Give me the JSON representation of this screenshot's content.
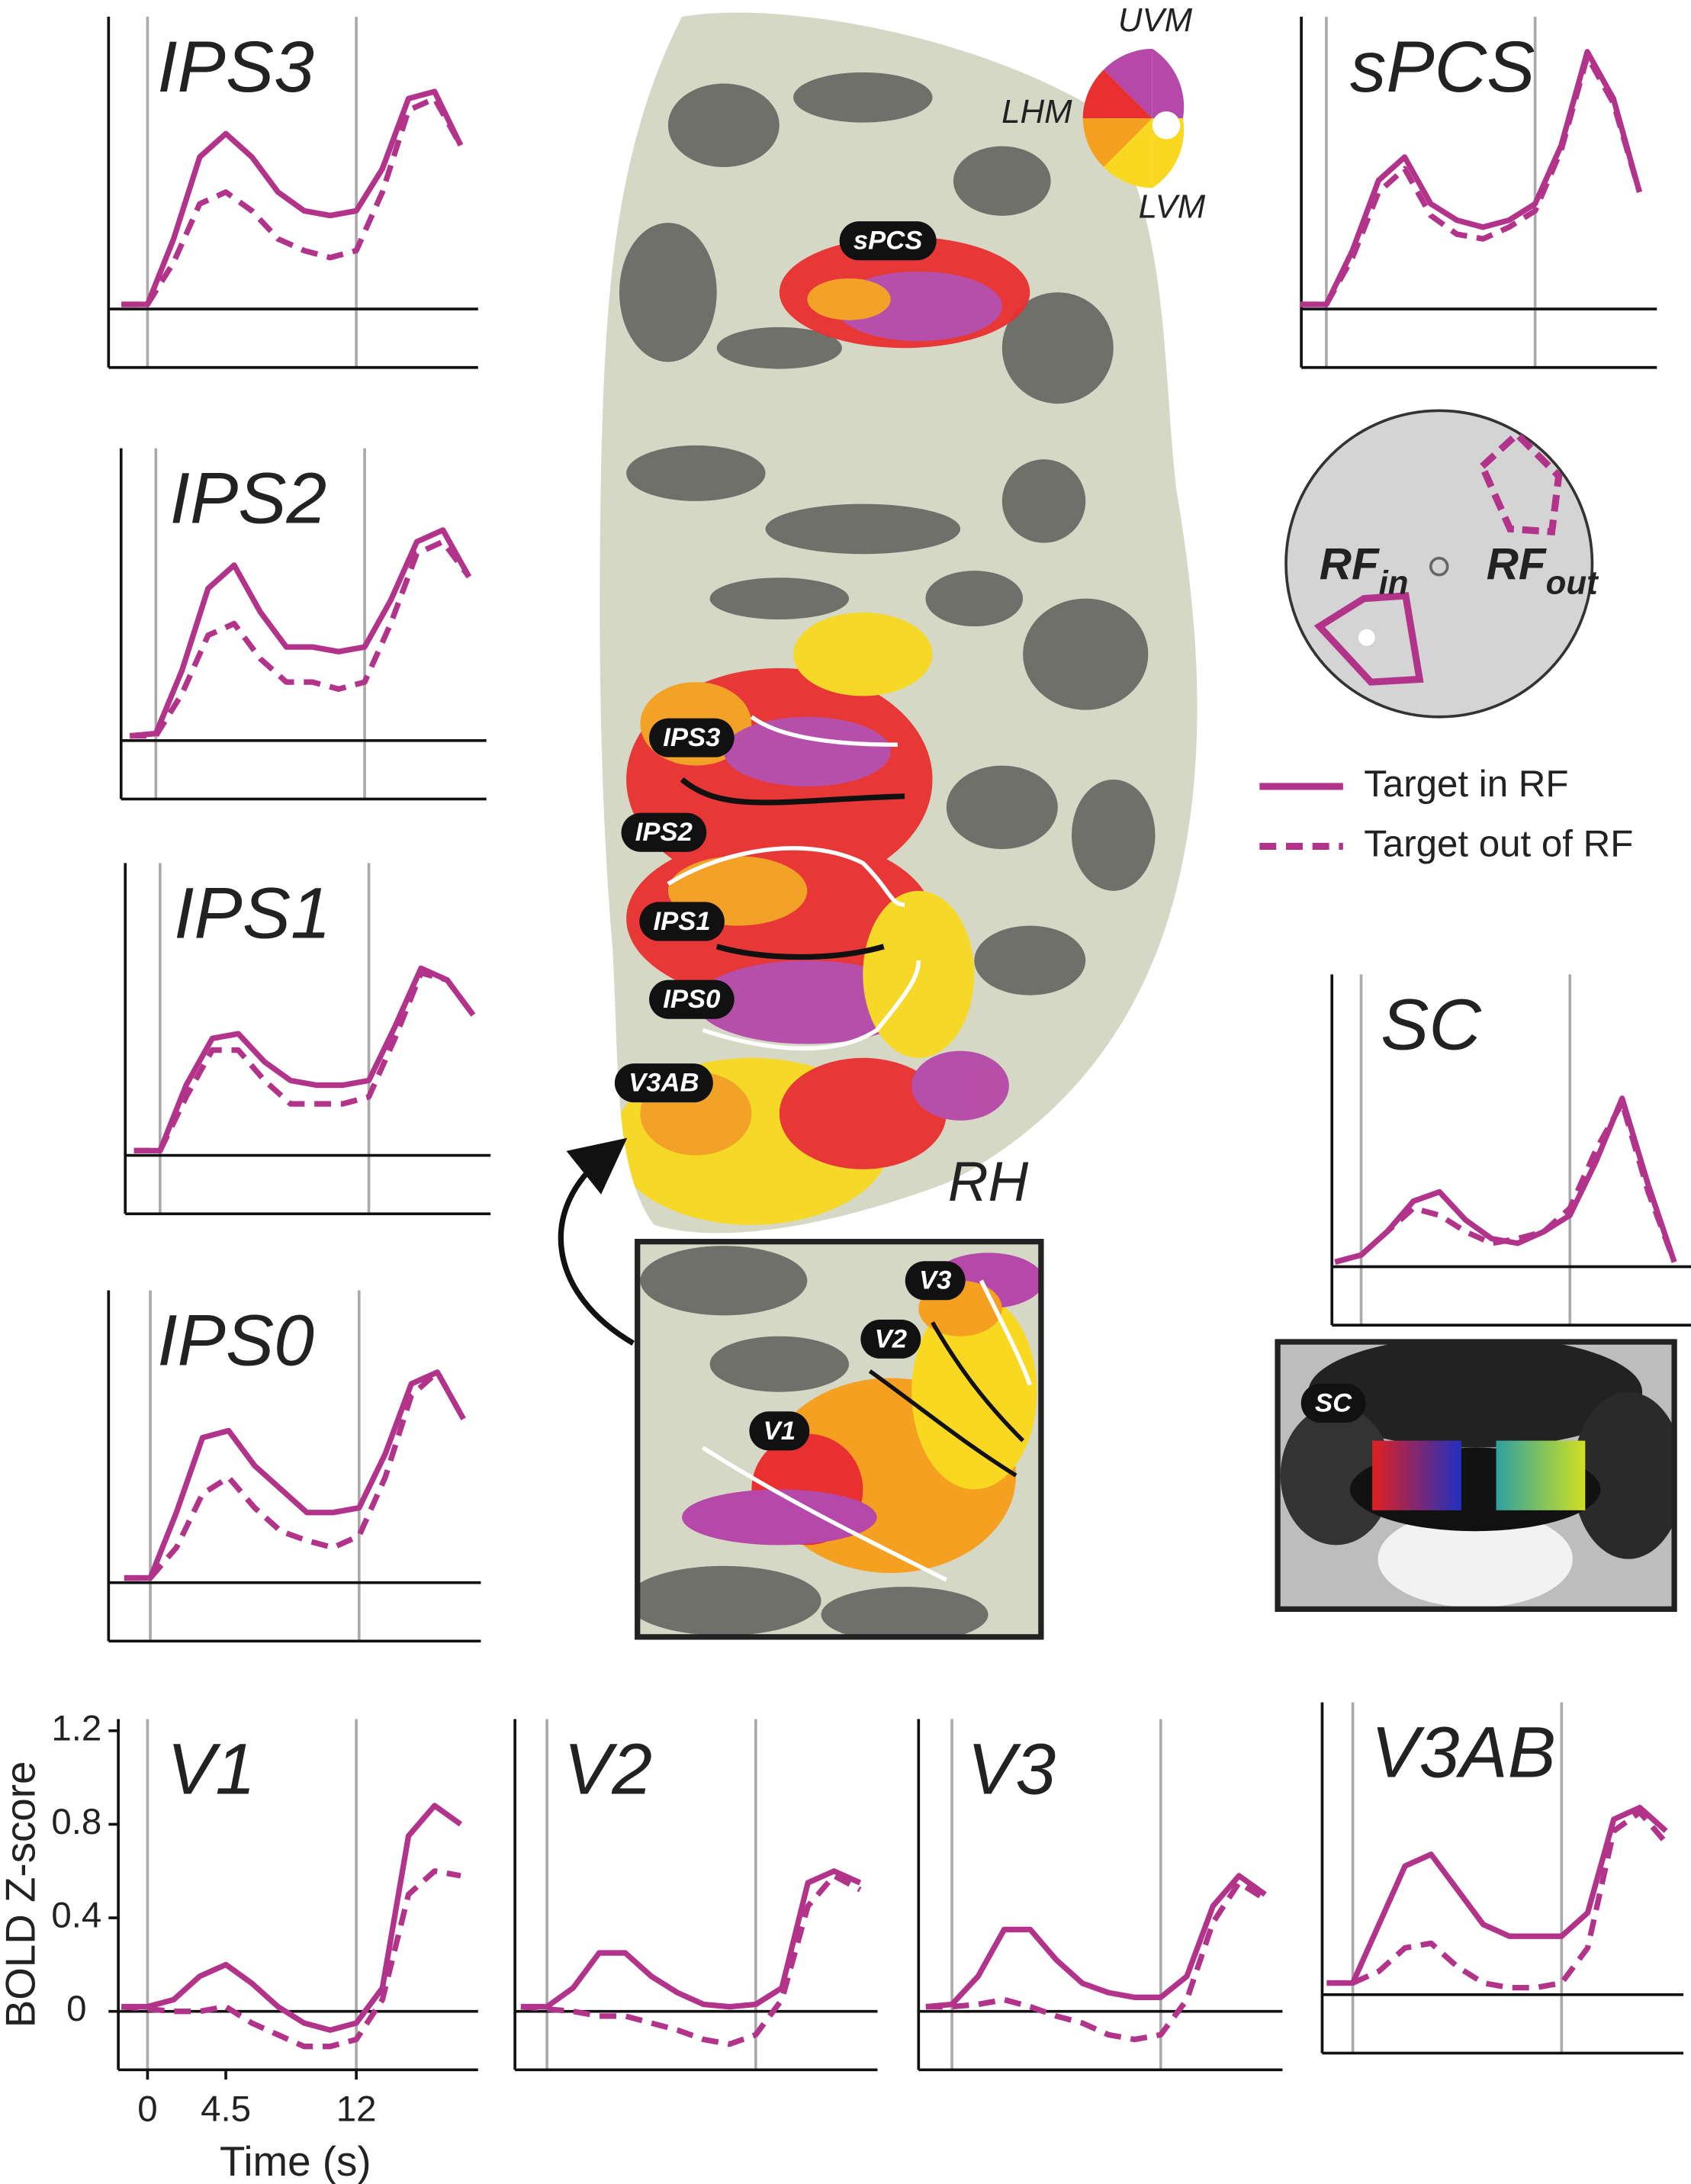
{
  "chart_data": [
    {
      "type": "line",
      "title": "IPS3",
      "x": [
        -1.5,
        0,
        1.5,
        3,
        4.5,
        6,
        7.5,
        9,
        10.5,
        12,
        13.5,
        15,
        16.5,
        18
      ],
      "xlim": [
        -2,
        19
      ],
      "ylim": [
        -0.25,
        1.25
      ],
      "markers": [
        0,
        12
      ],
      "series": [
        {
          "color": "#b2338a",
          "dash": false,
          "values": [
            0.02,
            0.02,
            0.3,
            0.65,
            0.75,
            0.65,
            0.5,
            0.42,
            0.4,
            0.42,
            0.6,
            0.9,
            0.93,
            0.7
          ]
        },
        {
          "color": "#b2338a",
          "dash": true,
          "values": [
            0.02,
            0.02,
            0.2,
            0.45,
            0.5,
            0.42,
            0.3,
            0.25,
            0.22,
            0.25,
            0.5,
            0.85,
            0.9,
            0.7
          ]
        }
      ]
    },
    {
      "type": "line",
      "title": "IPS2",
      "x": [
        -1.5,
        0,
        1.5,
        3,
        4.5,
        6,
        7.5,
        9,
        10.5,
        12,
        13.5,
        15,
        16.5,
        18
      ],
      "xlim": [
        -2,
        19
      ],
      "ylim": [
        -0.25,
        1.25
      ],
      "markers": [
        0,
        12
      ],
      "series": [
        {
          "color": "#b2338a",
          "dash": false,
          "values": [
            0.02,
            0.03,
            0.3,
            0.65,
            0.75,
            0.55,
            0.4,
            0.4,
            0.38,
            0.4,
            0.6,
            0.85,
            0.9,
            0.7
          ]
        },
        {
          "color": "#b2338a",
          "dash": true,
          "values": [
            0.02,
            0.02,
            0.2,
            0.45,
            0.5,
            0.35,
            0.25,
            0.25,
            0.22,
            0.25,
            0.5,
            0.8,
            0.85,
            0.7
          ]
        }
      ]
    },
    {
      "type": "line",
      "title": "IPS1",
      "x": [
        -1.5,
        0,
        1.5,
        3,
        4.5,
        6,
        7.5,
        9,
        10.5,
        12,
        13.5,
        15,
        16.5,
        18
      ],
      "xlim": [
        -2,
        19
      ],
      "ylim": [
        -0.25,
        1.25
      ],
      "markers": [
        0,
        12
      ],
      "series": [
        {
          "color": "#b2338a",
          "dash": false,
          "values": [
            0.02,
            0.02,
            0.3,
            0.5,
            0.52,
            0.4,
            0.32,
            0.3,
            0.3,
            0.32,
            0.55,
            0.8,
            0.75,
            0.6
          ]
        },
        {
          "color": "#b2338a",
          "dash": true,
          "values": [
            0.02,
            0.02,
            0.25,
            0.45,
            0.45,
            0.32,
            0.22,
            0.22,
            0.22,
            0.25,
            0.5,
            0.78,
            0.75,
            0.6
          ]
        }
      ]
    },
    {
      "type": "line",
      "title": "IPS0",
      "x": [
        -1.5,
        0,
        1.5,
        3,
        4.5,
        6,
        7.5,
        9,
        10.5,
        12,
        13.5,
        15,
        16.5,
        18
      ],
      "xlim": [
        -2,
        19
      ],
      "ylim": [
        -0.25,
        1.25
      ],
      "markers": [
        0,
        12
      ],
      "series": [
        {
          "color": "#b2338a",
          "dash": false,
          "values": [
            0.02,
            0.02,
            0.3,
            0.62,
            0.65,
            0.5,
            0.4,
            0.3,
            0.3,
            0.32,
            0.55,
            0.85,
            0.9,
            0.7
          ]
        },
        {
          "color": "#b2338a",
          "dash": true,
          "values": [
            0.02,
            0.02,
            0.15,
            0.38,
            0.45,
            0.32,
            0.22,
            0.18,
            0.15,
            0.2,
            0.45,
            0.8,
            0.9,
            0.7
          ]
        }
      ]
    },
    {
      "type": "line",
      "title": "sPCS",
      "x": [
        -1.5,
        0,
        1.5,
        3,
        4.5,
        6,
        7.5,
        9,
        10.5,
        12,
        13.5,
        15,
        16.5,
        18
      ],
      "xlim": [
        -2,
        19
      ],
      "ylim": [
        -0.25,
        1.25
      ],
      "markers": [
        0,
        12
      ],
      "series": [
        {
          "color": "#b2338a",
          "dash": false,
          "values": [
            0.02,
            0.02,
            0.25,
            0.55,
            0.65,
            0.45,
            0.38,
            0.35,
            0.38,
            0.45,
            0.7,
            1.1,
            0.9,
            0.5
          ]
        },
        {
          "color": "#b2338a",
          "dash": true,
          "values": [
            0.02,
            0.02,
            0.22,
            0.5,
            0.6,
            0.4,
            0.32,
            0.3,
            0.35,
            0.42,
            0.68,
            1.08,
            0.88,
            0.5
          ]
        }
      ]
    },
    {
      "type": "line",
      "title": "SC",
      "x": [
        -1.5,
        0,
        1.5,
        3,
        4.5,
        6,
        7.5,
        9,
        10.5,
        12,
        13.5,
        15,
        16.5,
        18
      ],
      "xlim": [
        -2,
        19
      ],
      "ylim": [
        -0.25,
        1.25
      ],
      "markers": [
        0,
        12
      ],
      "series": [
        {
          "color": "#b2338a",
          "dash": false,
          "values": [
            0.02,
            0.05,
            0.15,
            0.28,
            0.32,
            0.2,
            0.12,
            0.1,
            0.15,
            0.22,
            0.45,
            0.72,
            0.35,
            0.02
          ]
        },
        {
          "color": "#b2338a",
          "dash": true,
          "values": [
            0.02,
            0.05,
            0.15,
            0.25,
            0.22,
            0.15,
            0.1,
            0.12,
            0.15,
            0.25,
            0.5,
            0.7,
            0.32,
            0.02
          ]
        }
      ]
    },
    {
      "type": "line",
      "title": "V1",
      "x": [
        -1.5,
        0,
        1.5,
        3,
        4.5,
        6,
        7.5,
        9,
        10.5,
        12,
        13.5,
        15,
        16.5,
        18
      ],
      "xlim": [
        -2,
        19
      ],
      "ylim": [
        -0.25,
        1.25
      ],
      "markers": [
        0,
        12
      ],
      "xticks": [
        0,
        4.5,
        12
      ],
      "yticks": [
        0,
        0.4,
        0.8,
        1.2
      ],
      "xlabel": "Time (s)",
      "ylabel": "BOLD Z-score",
      "series": [
        {
          "color": "#b2338a",
          "dash": false,
          "values": [
            0.02,
            0.02,
            0.05,
            0.15,
            0.2,
            0.12,
            0.02,
            -0.05,
            -0.08,
            -0.05,
            0.1,
            0.75,
            0.88,
            0.8
          ]
        },
        {
          "color": "#b2338a",
          "dash": true,
          "values": [
            0.02,
            0.01,
            0.0,
            0.0,
            0.02,
            -0.05,
            -0.1,
            -0.15,
            -0.15,
            -0.12,
            0.05,
            0.5,
            0.6,
            0.58
          ]
        }
      ]
    },
    {
      "type": "line",
      "title": "V2",
      "x": [
        -1.5,
        0,
        1.5,
        3,
        4.5,
        6,
        7.5,
        9,
        10.5,
        12,
        13.5,
        15,
        16.5,
        18
      ],
      "xlim": [
        -2,
        19
      ],
      "ylim": [
        -0.25,
        1.25
      ],
      "markers": [
        0,
        12
      ],
      "series": [
        {
          "color": "#b2338a",
          "dash": false,
          "values": [
            0.02,
            0.02,
            0.1,
            0.25,
            0.25,
            0.15,
            0.08,
            0.03,
            0.02,
            0.03,
            0.1,
            0.55,
            0.6,
            0.55
          ]
        },
        {
          "color": "#b2338a",
          "dash": true,
          "values": [
            0.02,
            0.01,
            0.0,
            -0.02,
            -0.02,
            -0.05,
            -0.08,
            -0.12,
            -0.14,
            -0.1,
            0.05,
            0.45,
            0.58,
            0.52
          ]
        }
      ]
    },
    {
      "type": "line",
      "title": "V3",
      "x": [
        -1.5,
        0,
        1.5,
        3,
        4.5,
        6,
        7.5,
        9,
        10.5,
        12,
        13.5,
        15,
        16.5,
        18
      ],
      "xlim": [
        -2,
        19
      ],
      "ylim": [
        -0.25,
        1.25
      ],
      "markers": [
        0,
        12
      ],
      "series": [
        {
          "color": "#b2338a",
          "dash": false,
          "values": [
            0.02,
            0.03,
            0.15,
            0.35,
            0.35,
            0.22,
            0.12,
            0.08,
            0.06,
            0.06,
            0.15,
            0.45,
            0.58,
            0.5
          ]
        },
        {
          "color": "#b2338a",
          "dash": true,
          "values": [
            0.02,
            0.02,
            0.03,
            0.05,
            0.02,
            -0.02,
            -0.05,
            -0.1,
            -0.12,
            -0.1,
            0.05,
            0.38,
            0.55,
            0.48
          ]
        }
      ]
    },
    {
      "type": "line",
      "title": "V3AB",
      "x": [
        -1.5,
        0,
        1.5,
        3,
        4.5,
        6,
        7.5,
        9,
        10.5,
        12,
        13.5,
        15,
        16.5,
        18
      ],
      "xlim": [
        -2,
        19
      ],
      "ylim": [
        -0.25,
        1.25
      ],
      "markers": [
        0,
        12
      ],
      "series": [
        {
          "color": "#b2338a",
          "dash": false,
          "values": [
            0.05,
            0.05,
            0.3,
            0.55,
            0.6,
            0.45,
            0.3,
            0.25,
            0.25,
            0.25,
            0.35,
            0.75,
            0.8,
            0.7
          ]
        },
        {
          "color": "#b2338a",
          "dash": true,
          "values": [
            0.05,
            0.05,
            0.1,
            0.2,
            0.22,
            0.12,
            0.05,
            0.03,
            0.03,
            0.05,
            0.2,
            0.7,
            0.78,
            0.65
          ]
        }
      ]
    }
  ],
  "legend": {
    "entries": [
      {
        "label": "Target in RF",
        "color": "#b2338a",
        "dash": false
      },
      {
        "label": "Target out of RF",
        "color": "#b2338a",
        "dash": true
      }
    ]
  },
  "figure": {
    "brain_labels": [
      "sPCS",
      "IPS3",
      "IPS2",
      "IPS1",
      "IPS0",
      "V3AB"
    ],
    "inset_labels": [
      "V1",
      "V2",
      "V3"
    ],
    "hemisphere": "RH",
    "sc_label": "SC",
    "wheel": [
      "UVM",
      "LHM",
      "LVM"
    ],
    "rf_in": {
      "main": "RF",
      "sub": "in"
    },
    "rf_out": {
      "main": "RF",
      "sub": "out"
    }
  }
}
